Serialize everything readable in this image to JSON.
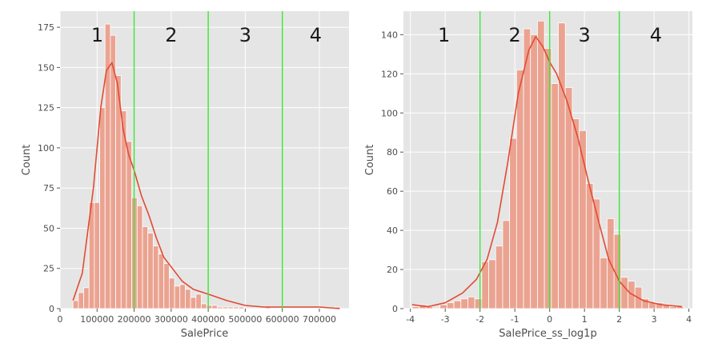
{
  "chart_data": [
    {
      "type": "bar",
      "subtype": "histogram-with-kde",
      "xlabel": "SalePrice",
      "ylabel": "Count",
      "xlim": [
        0,
        780000
      ],
      "ylim": [
        0,
        185
      ],
      "xticks": [
        0,
        100000,
        200000,
        300000,
        400000,
        500000,
        600000,
        700000
      ],
      "xtick_labels": [
        "0",
        "100000",
        "200000",
        "300000",
        "400000",
        "500000",
        "600000",
        "700000"
      ],
      "yticks": [
        0,
        25,
        50,
        75,
        100,
        125,
        150,
        175
      ],
      "ytick_labels": [
        "0",
        "25",
        "50",
        "75",
        "100",
        "125",
        "150",
        "175"
      ],
      "bin_start": 34900,
      "bin_width": 14434,
      "counts": [
        5,
        10,
        13,
        66,
        66,
        125,
        177,
        170,
        145,
        123,
        104,
        69,
        64,
        51,
        47,
        39,
        34,
        28,
        19,
        14,
        15,
        12,
        7,
        9,
        3,
        2,
        2,
        1,
        1,
        1,
        1,
        1,
        0,
        0,
        0,
        0,
        1,
        0,
        0,
        0,
        0,
        0,
        0,
        0,
        0,
        0,
        0,
        0,
        0,
        1
      ],
      "kde": [
        [
          34900,
          5
        ],
        [
          60000,
          22
        ],
        [
          90000,
          75
        ],
        [
          110000,
          125
        ],
        [
          125000,
          148
        ],
        [
          140000,
          153
        ],
        [
          155000,
          140
        ],
        [
          170000,
          112
        ],
        [
          185000,
          96
        ],
        [
          200000,
          86
        ],
        [
          220000,
          70
        ],
        [
          240000,
          58
        ],
        [
          260000,
          44
        ],
        [
          280000,
          32
        ],
        [
          300000,
          26
        ],
        [
          330000,
          17
        ],
        [
          360000,
          12
        ],
        [
          400000,
          9
        ],
        [
          450000,
          5
        ],
        [
          500000,
          2
        ],
        [
          550000,
          1
        ],
        [
          600000,
          1
        ],
        [
          650000,
          1
        ],
        [
          700000,
          1
        ],
        [
          755000,
          0
        ]
      ],
      "reference_lines": [
        200000,
        400000,
        600000
      ],
      "region_labels": [
        "1",
        "2",
        "3",
        "4"
      ],
      "grid": true,
      "colors": {
        "bars": "#eba391",
        "bar_edge": "#ffffff",
        "kde": "#e24a33",
        "lines": "#39e839",
        "background": "#e5e5e5",
        "grid": "#ffffff"
      }
    },
    {
      "type": "bar",
      "subtype": "histogram-with-kde",
      "xlabel": "SalePrice_ss_log1p",
      "ylabel": "Count",
      "xlim": [
        -4.2,
        4.1
      ],
      "ylim": [
        0,
        152
      ],
      "xticks": [
        -4,
        -3,
        -2,
        -1,
        0,
        1,
        2,
        3,
        4
      ],
      "xtick_labels": [
        "-4",
        "-3",
        "-2",
        "-1",
        "0",
        "1",
        "2",
        "3",
        "4"
      ],
      "yticks": [
        0,
        20,
        40,
        60,
        80,
        100,
        120,
        140
      ],
      "ytick_labels": [
        "0",
        "20",
        "40",
        "60",
        "80",
        "100",
        "120",
        "140"
      ],
      "bin_start": -3.95,
      "bin_width": 0.2,
      "counts": [
        1,
        2,
        1,
        0,
        2,
        3,
        4,
        5,
        6,
        5,
        24,
        25,
        32,
        45,
        87,
        122,
        143,
        140,
        147,
        133,
        115,
        146,
        113,
        97,
        91,
        64,
        56,
        26,
        46,
        38,
        16,
        14,
        11,
        5,
        3,
        3,
        2,
        1,
        1
      ],
      "kde": [
        [
          -3.95,
          2
        ],
        [
          -3.5,
          1
        ],
        [
          -3.0,
          3
        ],
        [
          -2.5,
          8
        ],
        [
          -2.1,
          15
        ],
        [
          -1.8,
          25
        ],
        [
          -1.5,
          44
        ],
        [
          -1.2,
          75
        ],
        [
          -0.9,
          110
        ],
        [
          -0.6,
          132
        ],
        [
          -0.4,
          139
        ],
        [
          -0.2,
          134
        ],
        [
          0.0,
          126
        ],
        [
          0.2,
          120
        ],
        [
          0.5,
          106
        ],
        [
          0.8,
          88
        ],
        [
          1.1,
          66
        ],
        [
          1.4,
          45
        ],
        [
          1.7,
          25
        ],
        [
          2.0,
          14
        ],
        [
          2.3,
          8
        ],
        [
          2.7,
          4
        ],
        [
          3.2,
          2
        ],
        [
          3.8,
          1
        ]
      ],
      "reference_lines": [
        -2,
        0,
        2
      ],
      "region_labels": [
        "1",
        "2",
        "3",
        "4"
      ],
      "grid": true,
      "colors": {
        "bars": "#eba391",
        "bar_edge": "#ffffff",
        "kde": "#e24a33",
        "lines": "#39e839",
        "background": "#e5e5e5",
        "grid": "#ffffff"
      }
    }
  ]
}
